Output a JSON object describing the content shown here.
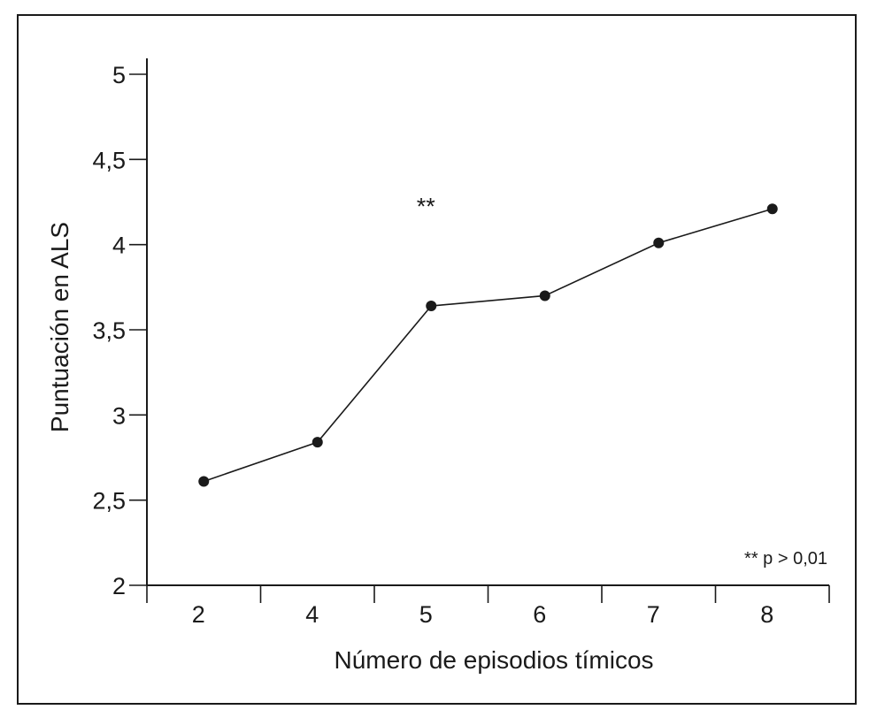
{
  "chart_data": {
    "type": "line",
    "title": "",
    "xlabel": "Número de episodios tímicos",
    "ylabel": "Puntuación en ALS",
    "categories": [
      "2",
      "4",
      "5",
      "6",
      "7",
      "8"
    ],
    "series": [
      {
        "values": [
          2.61,
          2.84,
          3.64,
          3.7,
          4.01,
          4.21
        ]
      }
    ],
    "ylim": [
      2,
      5
    ],
    "yticks": [
      2,
      2.5,
      3,
      3.5,
      4,
      4.5,
      5
    ],
    "ytick_labels": [
      "2",
      "2,5",
      "3",
      "3,5",
      "4",
      "4,5",
      "5"
    ],
    "grid": false,
    "annotations": {
      "significance_marker": "**",
      "significance_category": "5",
      "significance_y": 4.26,
      "footnote": "** p > 0,01"
    },
    "colors": {
      "line": "#1a1a1a",
      "marker": "#1a1a1a"
    }
  }
}
